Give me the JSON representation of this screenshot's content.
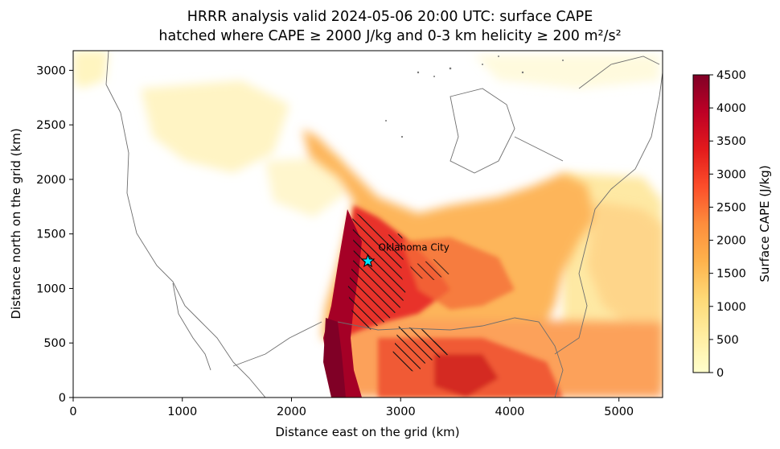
{
  "chart_data": {
    "type": "heatmap",
    "title_line1": "HRRR analysis valid 2024-05-06 20:00 UTC: surface CAPE",
    "title_line2": "hatched where CAPE ≥ 2000 J/kg and 0-3 km helicity ≥ 200 m²/s²",
    "xlabel": "Distance east on the grid (km)",
    "ylabel": "Distance north on the grid (km)",
    "xlim": [
      0,
      5400
    ],
    "ylim": [
      0,
      3180
    ],
    "xticks": [
      0,
      1000,
      2000,
      3000,
      4000,
      5000
    ],
    "yticks": [
      0,
      500,
      1000,
      1500,
      2000,
      2500,
      3000
    ],
    "colorbar": {
      "label": "Surface CAPE (J/kg)",
      "range": [
        0,
        4500
      ],
      "ticks": [
        0,
        500,
        1000,
        1500,
        2000,
        2500,
        3000,
        3500,
        4000,
        4500
      ],
      "colormap": [
        "#ffffcc",
        "#ffeda0",
        "#fed976",
        "#feb24c",
        "#fd8d3c",
        "#fc4e2a",
        "#e31a1c",
        "#bd0026",
        "#800026"
      ]
    },
    "annotation": {
      "label": "Oklahoma City",
      "marker": "star",
      "marker_color": "#00e5ff",
      "x": 2700,
      "y": 1250
    },
    "hatch_threshold_cape": 2000,
    "hatch_threshold_helicity": 200
  }
}
